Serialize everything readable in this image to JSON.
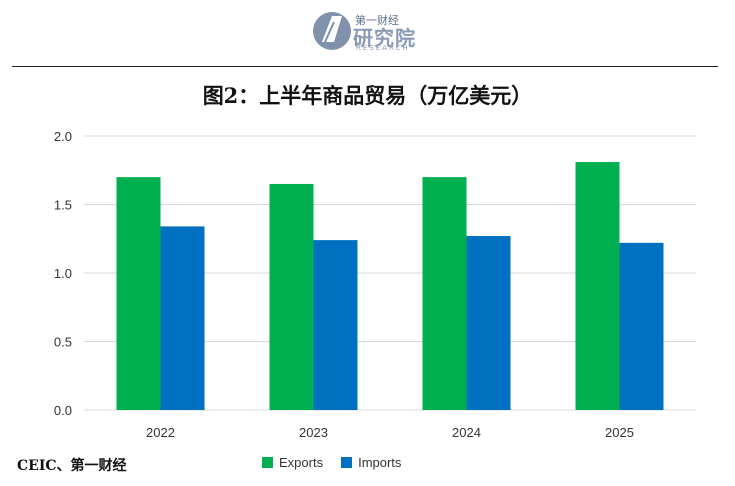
{
  "header": {
    "logo_top": "第一财经",
    "logo_main": "研究院",
    "logo_sub": "RESEARCH"
  },
  "title": "图2：上半年商品贸易（万亿美元）",
  "source": "CEIC、第一财经",
  "colors": {
    "exports": "#00b050",
    "imports": "#0070c0",
    "axis": "#d9d9d9",
    "text": "#333333"
  },
  "chart_data": {
    "type": "bar",
    "title": "图2：上半年商品贸易（万亿美元）",
    "categories": [
      "2022",
      "2023",
      "2024",
      "2025"
    ],
    "series": [
      {
        "name": "Exports",
        "values": [
          1.7,
          1.65,
          1.7,
          1.81
        ]
      },
      {
        "name": "Imports",
        "values": [
          1.34,
          1.24,
          1.27,
          1.22
        ]
      }
    ],
    "ylim": [
      0,
      2.0
    ],
    "yticks": [
      "0.0",
      "0.5",
      "1.0",
      "1.5",
      "2.0"
    ],
    "grid": true,
    "legend_position": "bottom"
  }
}
